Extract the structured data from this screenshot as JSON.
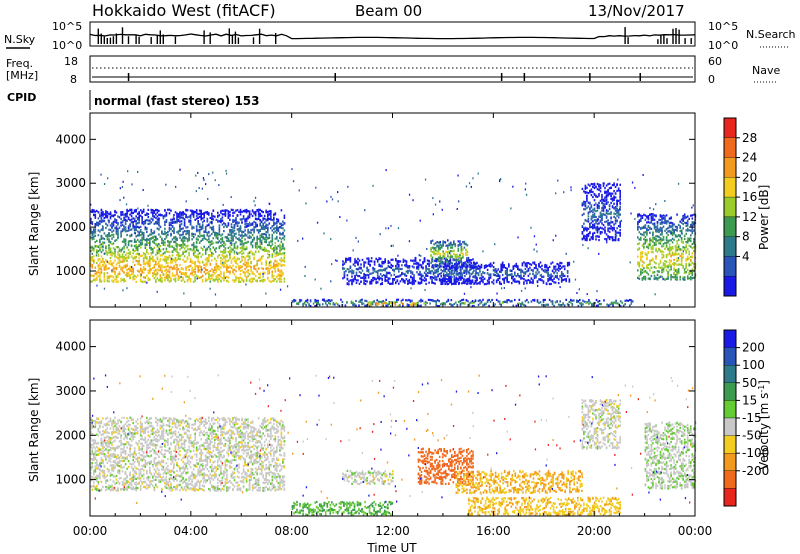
{
  "header": {
    "title": "Hokkaido West (fitACF)",
    "beam": "Beam 00",
    "date": "13/Nov/2017"
  },
  "strips": {
    "noise_sky_label": "N.Sky",
    "noise_search_label": "N.Search",
    "noise_left_ticks": [
      "10^5",
      "10^0"
    ],
    "noise_right_ticks": [
      "10^5",
      "10^0"
    ],
    "freq_label": [
      "Freq.",
      "[MHz]"
    ],
    "freq_ticks": [
      "18",
      "8"
    ],
    "nave_label": "Nave",
    "nave_ticks": [
      "60",
      "0"
    ],
    "cpid_label": "CPID",
    "cpid_text": "normal (fast stereo) 153"
  },
  "x_axis": {
    "label": "Time UT",
    "ticks": [
      "00:00",
      "04:00",
      "08:00",
      "12:00",
      "16:00",
      "20:00",
      "00:00"
    ],
    "range_hours": [
      0,
      24
    ]
  },
  "colors": {
    "power": [
      "#1a1ae6",
      "#2a55b8",
      "#2f7a8a",
      "#3c9b50",
      "#9ccc2a",
      "#f2cc1e",
      "#f29a1e",
      "#f06a1e",
      "#e8261e"
    ],
    "velocity": [
      "#1a1ae6",
      "#2a55b8",
      "#2f7a8a",
      "#3c9b50",
      "#66cc33",
      "#c8c8c8",
      "#f2cc1e",
      "#f29a1e",
      "#f06a1e",
      "#e8261e"
    ]
  },
  "chart_data": [
    {
      "type": "heatmap",
      "title": "",
      "xlabel": "",
      "ylabel": "Slant Range [km]",
      "y_ticks": [
        "1000",
        "2000",
        "3000",
        "4000"
      ],
      "ylim": [
        180,
        4600
      ],
      "colorbar": {
        "label": "Power [dB]",
        "ticks": [
          "4",
          "8",
          "12",
          "16",
          "20",
          "24",
          "28"
        ],
        "range": [
          0,
          32
        ]
      },
      "regions": [
        {
          "time_h": [
            0.0,
            7.7
          ],
          "range_km": [
            750,
            2400
          ],
          "core_km": 1050,
          "core_value_db": 22
        },
        {
          "time_h": [
            10.0,
            15.3
          ],
          "range_km": [
            700,
            1300
          ],
          "core_km": 1000,
          "core_value_db": 8
        },
        {
          "time_h": [
            13.5,
            15.0
          ],
          "range_km": [
            1100,
            1700
          ],
          "core_km": 1400,
          "core_value_db": 18
        },
        {
          "time_h": [
            14.0,
            19.0
          ],
          "range_km": [
            700,
            1200
          ],
          "core_km": 950,
          "core_value_db": 8
        },
        {
          "time_h": [
            8.0,
            21.5
          ],
          "range_km": [
            200,
            350
          ],
          "core_km": 270,
          "core_value_db": 14
        },
        {
          "time_h": [
            11.0,
            13.0
          ],
          "range_km": [
            200,
            300
          ],
          "core_km": 250,
          "core_value_db": 26
        },
        {
          "time_h": [
            19.5,
            21.0
          ],
          "range_km": [
            1700,
            3000
          ],
          "core_km": 2300,
          "core_value_db": 8
        },
        {
          "time_h": [
            21.7,
            24.0
          ],
          "range_km": [
            800,
            2300
          ],
          "core_km": 1300,
          "core_value_db": 20
        }
      ]
    },
    {
      "type": "heatmap",
      "title": "",
      "xlabel": "Time UT",
      "ylabel": "Slant Range [km]",
      "y_ticks": [
        "1000",
        "2000",
        "3000",
        "4000"
      ],
      "ylim": [
        180,
        4600
      ],
      "colorbar": {
        "label": "Velocity [m s^-1]",
        "ticks": [
          "200",
          "100",
          "50",
          "15",
          "-15",
          "-50",
          "-100",
          "-200"
        ],
        "range": [
          -250,
          250
        ]
      },
      "regions": [
        {
          "time_h": [
            0.0,
            7.7
          ],
          "range_km": [
            750,
            2400
          ],
          "core_km": 1100,
          "core_value_ms": 0
        },
        {
          "time_h": [
            13.0,
            15.2
          ],
          "range_km": [
            900,
            1700
          ],
          "core_km": 1200,
          "core_value_ms": -150
        },
        {
          "time_h": [
            14.5,
            19.5
          ],
          "range_km": [
            700,
            1200
          ],
          "core_km": 950,
          "core_value_ms": -50
        },
        {
          "time_h": [
            8.0,
            12.0
          ],
          "range_km": [
            200,
            500
          ],
          "core_km": 300,
          "core_value_ms": 50
        },
        {
          "time_h": [
            15.0,
            21.0
          ],
          "range_km": [
            200,
            600
          ],
          "core_km": 350,
          "core_value_ms": -40
        },
        {
          "time_h": [
            10.0,
            12.0
          ],
          "range_km": [
            900,
            1200
          ],
          "core_km": 1000,
          "core_value_ms": 0
        },
        {
          "time_h": [
            19.5,
            21.0
          ],
          "range_km": [
            1700,
            2800
          ],
          "core_km": 2200,
          "core_value_ms": 0
        },
        {
          "time_h": [
            22.0,
            24.0
          ],
          "range_km": [
            800,
            2300
          ],
          "core_km": 1400,
          "core_value_ms": 10
        }
      ]
    }
  ]
}
